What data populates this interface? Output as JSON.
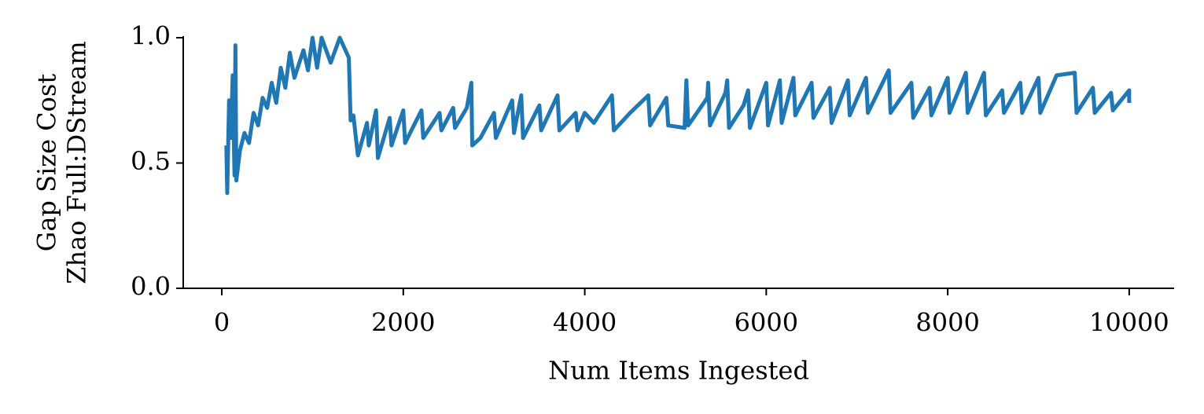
{
  "chart_data": {
    "type": "line",
    "xlabel": "Num Items Ingested",
    "ylabel": [
      "Gap Size Cost",
      "Zhao Full:DStream"
    ],
    "x": [
      50,
      60,
      80,
      100,
      120,
      140,
      150,
      160,
      200,
      250,
      300,
      350,
      400,
      450,
      500,
      550,
      600,
      650,
      700,
      750,
      800,
      900,
      950,
      1000,
      1050,
      1100,
      1200,
      1300,
      1400,
      1420,
      1450,
      1500,
      1600,
      1620,
      1700,
      1720,
      1850,
      1870,
      2000,
      2020,
      2200,
      2220,
      2400,
      2420,
      2550,
      2570,
      2700,
      2750,
      2760,
      2850,
      3000,
      3020,
      3200,
      3220,
      3300,
      3320,
      3500,
      3520,
      3700,
      3720,
      3900,
      3920,
      4000,
      4100,
      4300,
      4320,
      4500,
      4700,
      4720,
      4900,
      4920,
      5100,
      5120,
      5140,
      5350,
      5360,
      5380,
      5550,
      5570,
      5590,
      5750,
      5800,
      5820,
      6000,
      6020,
      6150,
      6170,
      6300,
      6320,
      6500,
      6520,
      6700,
      6720,
      6900,
      6920,
      7100,
      7120,
      7350,
      7370,
      7600,
      7620,
      7800,
      7820,
      8000,
      8020,
      8200,
      8220,
      8400,
      8420,
      8600,
      8620,
      8800,
      8820,
      9000,
      9020,
      9200,
      9400,
      9420,
      9600,
      9620,
      9800,
      9820,
      10000,
      10000
    ],
    "series": [
      {
        "name": "Zhao Full:DStream",
        "color": "#1f77b4",
        "values": [
          0.57,
          0.38,
          0.75,
          0.6,
          0.85,
          0.45,
          0.97,
          0.43,
          0.55,
          0.62,
          0.58,
          0.7,
          0.65,
          0.76,
          0.72,
          0.82,
          0.74,
          0.88,
          0.8,
          0.94,
          0.84,
          0.95,
          0.87,
          1.0,
          0.88,
          1.0,
          0.9,
          1.0,
          0.92,
          0.67,
          0.69,
          0.53,
          0.66,
          0.57,
          0.71,
          0.52,
          0.68,
          0.57,
          0.71,
          0.58,
          0.71,
          0.6,
          0.7,
          0.63,
          0.72,
          0.64,
          0.72,
          0.82,
          0.57,
          0.6,
          0.7,
          0.6,
          0.75,
          0.62,
          0.77,
          0.6,
          0.73,
          0.63,
          0.77,
          0.63,
          0.7,
          0.63,
          0.7,
          0.66,
          0.77,
          0.63,
          0.7,
          0.77,
          0.65,
          0.76,
          0.65,
          0.64,
          0.83,
          0.65,
          0.76,
          0.82,
          0.65,
          0.78,
          0.83,
          0.64,
          0.73,
          0.79,
          0.64,
          0.82,
          0.65,
          0.83,
          0.66,
          0.84,
          0.69,
          0.82,
          0.68,
          0.8,
          0.66,
          0.83,
          0.69,
          0.84,
          0.7,
          0.87,
          0.7,
          0.82,
          0.68,
          0.8,
          0.69,
          0.84,
          0.7,
          0.86,
          0.7,
          0.86,
          0.69,
          0.79,
          0.7,
          0.82,
          0.7,
          0.84,
          0.7,
          0.85,
          0.86,
          0.7,
          0.8,
          0.7,
          0.78,
          0.71,
          0.79,
          0.74
        ]
      }
    ],
    "xlim": [
      -425,
      10495
    ],
    "ylim": [
      0,
      1
    ],
    "xticks": [
      0,
      2000,
      4000,
      6000,
      8000,
      10000
    ],
    "yticks": [
      {
        "value": 0,
        "label": "0.0"
      },
      {
        "value": 0.5,
        "label": "0.5"
      },
      {
        "value": 1,
        "label": "1.0"
      }
    ],
    "grid": false
  }
}
